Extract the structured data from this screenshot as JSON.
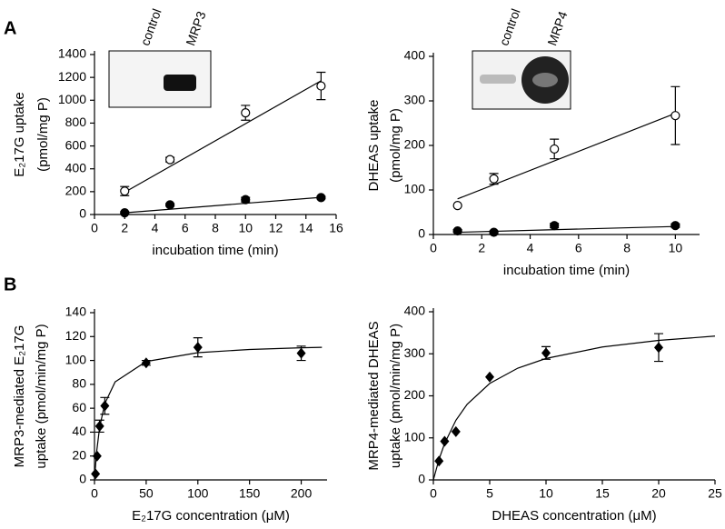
{
  "panel_labels": [
    "A",
    "B"
  ],
  "chart_data": [
    {
      "type": "scatter",
      "xlabel": "incubation time (min)",
      "ylabel": [
        "E₂17G uptake",
        "(pmol/mg P)"
      ],
      "xlim": [
        0,
        16
      ],
      "xticks": [
        0,
        2,
        4,
        6,
        8,
        10,
        12,
        14,
        16
      ],
      "ylim": [
        0,
        1400
      ],
      "yticks": [
        0,
        200,
        400,
        600,
        800,
        1000,
        1200,
        1400
      ],
      "inset_labels": [
        "control",
        "MRP3"
      ],
      "series": [
        {
          "marker": "circle-open",
          "color": "#000000",
          "x": [
            2,
            5,
            10,
            15
          ],
          "values": [
            205,
            480,
            890,
            1125
          ],
          "errors": [
            40,
            20,
            65,
            120
          ]
        },
        {
          "marker": "circle-filled",
          "color": "#000000",
          "x": [
            2,
            5,
            10,
            15
          ],
          "values": [
            15,
            85,
            130,
            148
          ],
          "errors": [
            10,
            10,
            20,
            10
          ]
        }
      ],
      "fits": [
        {
          "x": [
            2,
            15
          ],
          "values": [
            195,
            1170
          ]
        },
        {
          "x": [
            2,
            15
          ],
          "values": [
            15,
            150
          ]
        }
      ]
    },
    {
      "type": "scatter",
      "xlabel": "incubation time (min)",
      "ylabel": [
        "DHEAS uptake",
        "(pmol/mg P)"
      ],
      "xlim": [
        0,
        11
      ],
      "xticks": [
        0,
        2,
        4,
        6,
        8,
        10
      ],
      "ylim": [
        0,
        400
      ],
      "yticks": [
        0,
        100,
        200,
        300,
        400
      ],
      "inset_labels": [
        "control",
        "MRP4"
      ],
      "series": [
        {
          "marker": "circle-open",
          "color": "#000000",
          "x": [
            1,
            2.5,
            5,
            10
          ],
          "values": [
            65,
            125,
            192,
            267
          ],
          "errors": [
            0,
            12,
            22,
            65
          ]
        },
        {
          "marker": "circle-filled",
          "color": "#000000",
          "x": [
            1,
            2.5,
            5,
            10
          ],
          "values": [
            8,
            5,
            20,
            20
          ],
          "errors": [
            3,
            3,
            5,
            4
          ]
        }
      ],
      "fits": [
        {
          "x": [
            1,
            10
          ],
          "values": [
            80,
            272
          ]
        },
        {
          "x": [
            1,
            10
          ],
          "values": [
            5,
            18
          ]
        }
      ]
    },
    {
      "type": "scatter",
      "xlabel": "E₂17G concentration (μM)",
      "ylabel": [
        "MRP3-mediated E₂17G",
        "uptake (pmol/min/mg P)"
      ],
      "xlim": [
        0,
        225
      ],
      "xticks": [
        0,
        50,
        100,
        150,
        200
      ],
      "ylim": [
        0,
        140
      ],
      "yticks": [
        0,
        20,
        40,
        60,
        80,
        100,
        120,
        140
      ],
      "series": [
        {
          "marker": "diamond",
          "color": "#000000",
          "x": [
            1,
            2.5,
            5,
            10,
            50,
            100,
            200
          ],
          "values": [
            5,
            20,
            45,
            62,
            98,
            111,
            106
          ],
          "errors": [
            0,
            0,
            5,
            7,
            2,
            8,
            6
          ]
        }
      ],
      "fits": [
        {
          "x": [
            0,
            2,
            5,
            10,
            20,
            50,
            100,
            150,
            200,
            220
          ],
          "values": [
            0,
            23,
            44.2,
            63.9,
            82.1,
            99.1,
            106.5,
            109.2,
            110.6,
            111.0
          ]
        }
      ]
    },
    {
      "type": "scatter",
      "xlabel": "DHEAS concentration (μM)",
      "ylabel": [
        "MRP4-mediated DHEAS",
        "uptake (pmol/min/mg P)"
      ],
      "xlim": [
        0,
        25
      ],
      "xticks": [
        0,
        5,
        10,
        15,
        20,
        25
      ],
      "ylim": [
        0,
        400
      ],
      "yticks": [
        0,
        100,
        200,
        300,
        400
      ],
      "series": [
        {
          "marker": "diamond",
          "color": "#000000",
          "x": [
            0.5,
            1,
            2,
            5,
            10,
            20
          ],
          "values": [
            45,
            92,
            115,
            245,
            302,
            315
          ],
          "errors": [
            0,
            0,
            0,
            0,
            15,
            33
          ]
        }
      ],
      "fits": [
        {
          "x": [
            0,
            0.5,
            1,
            2,
            3,
            5,
            7.5,
            10,
            15,
            20,
            25
          ],
          "values": [
            0,
            48.8,
            86.7,
            141.8,
            180,
            229.4,
            265.9,
            288.9,
            316.2,
            331.9,
            342.1
          ]
        }
      ]
    }
  ]
}
